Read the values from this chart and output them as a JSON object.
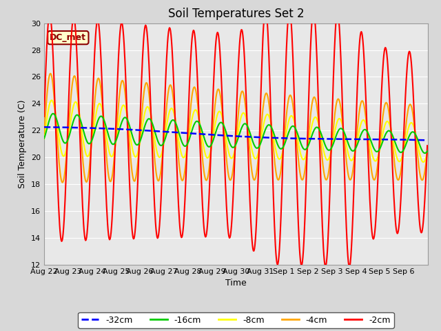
{
  "title": "Soil Temperatures Set 2",
  "xlabel": "Time",
  "ylabel": "Soil Temperature (C)",
  "ylim": [
    12,
    30
  ],
  "yticks": [
    12,
    14,
    16,
    18,
    20,
    22,
    24,
    26,
    28,
    30
  ],
  "legend_label": "DC_met",
  "series_labels": [
    "-32cm",
    "-16cm",
    "-8cm",
    "-4cm",
    "-2cm"
  ],
  "series_colors": [
    "blue",
    "#00cc00",
    "yellow",
    "orange",
    "red"
  ],
  "day_labels": [
    "Aug 22",
    "Aug 23",
    "Aug 24",
    "Aug 25",
    "Aug 26",
    "Aug 27",
    "Aug 28",
    "Aug 29",
    "Aug 30",
    "Aug 31",
    "Sep 1",
    "Sep 2",
    "Sep 3",
    "Sep 4",
    "Sep 5",
    "Sep 6"
  ],
  "background_color": "#d8d8d8",
  "plot_bg_color": "#e8e8e8",
  "title_fontsize": 12,
  "axis_fontsize": 9,
  "tick_fontsize": 8
}
